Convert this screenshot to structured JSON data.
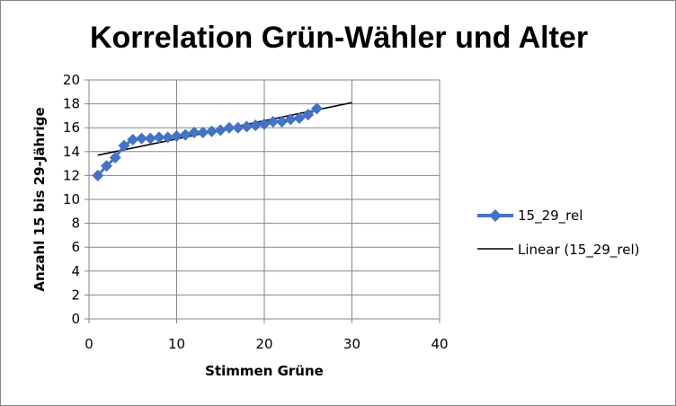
{
  "chart_data": {
    "type": "scatter",
    "title": "Korrelation Grün-Wähler und Alter",
    "xlabel": "Stimmen Grüne",
    "ylabel": "Anzahl 15 bis 29-Jährige",
    "xlim": [
      0,
      40
    ],
    "ylim": [
      0,
      20
    ],
    "x_ticks": [
      0,
      10,
      20,
      30,
      40
    ],
    "y_ticks": [
      0,
      2,
      4,
      6,
      8,
      10,
      12,
      14,
      16,
      18,
      20
    ],
    "grid": true,
    "legend_position": "right",
    "series": [
      {
        "name": "15_29_rel",
        "color": "#4472C4",
        "marker": "diamond",
        "x": [
          1,
          2,
          3,
          4,
          5,
          6,
          7,
          8,
          9,
          10,
          11,
          12,
          13,
          14,
          15,
          16,
          17,
          18,
          19,
          20,
          21,
          22,
          23,
          24,
          25,
          26
        ],
        "y": [
          12.0,
          12.8,
          13.5,
          14.5,
          15.0,
          15.1,
          15.1,
          15.2,
          15.2,
          15.3,
          15.4,
          15.6,
          15.6,
          15.7,
          15.8,
          16.0,
          16.0,
          16.1,
          16.2,
          16.3,
          16.5,
          16.5,
          16.7,
          16.8,
          17.1,
          17.6
        ]
      }
    ],
    "trendline": {
      "name": "Linear (15_29_rel)",
      "color": "#000000",
      "x": [
        1,
        30
      ],
      "y": [
        13.7,
        18.1
      ]
    }
  }
}
